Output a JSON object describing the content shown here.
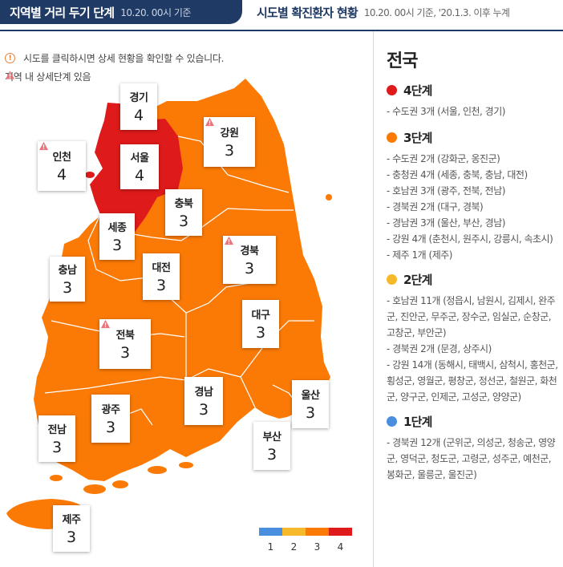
{
  "header": {
    "tab_active": {
      "title": "지역별 거리 두기 단계",
      "subtitle": "10.20. 00시 기준"
    },
    "tab_inactive": {
      "title": "시도별 확진환자 현황",
      "subtitle": "10.20. 00시 기준, '20.1.3. 이후 누계"
    }
  },
  "notices": {
    "info_icon": "info-circle-icon",
    "info_text": "시도를 클릭하시면 상세 현황을 확인할 수 있습니다.",
    "warn_icon": "warning-triangle-icon",
    "warn_text": "지역 내 상세단계 있음"
  },
  "colors": {
    "level1": "#4a8fdf",
    "level2": "#f7b92c",
    "level3": "#fb7a06",
    "level4": "#de1a1a",
    "warning": "#e9737b",
    "header_bg": "#1f3a64"
  },
  "regions": [
    {
      "name": "경기",
      "level": "4",
      "warning": false
    },
    {
      "name": "인천",
      "level": "4",
      "warning": true
    },
    {
      "name": "서울",
      "level": "4",
      "warning": false
    },
    {
      "name": "강원",
      "level": "3",
      "warning": true
    },
    {
      "name": "충북",
      "level": "3",
      "warning": false
    },
    {
      "name": "세종",
      "level": "3",
      "warning": false
    },
    {
      "name": "충남",
      "level": "3",
      "warning": false
    },
    {
      "name": "대전",
      "level": "3",
      "warning": false
    },
    {
      "name": "경북",
      "level": "3",
      "warning": true
    },
    {
      "name": "대구",
      "level": "3",
      "warning": false
    },
    {
      "name": "전북",
      "level": "3",
      "warning": true
    },
    {
      "name": "경남",
      "level": "3",
      "warning": false
    },
    {
      "name": "울산",
      "level": "3",
      "warning": false
    },
    {
      "name": "광주",
      "level": "3",
      "warning": false
    },
    {
      "name": "전남",
      "level": "3",
      "warning": false
    },
    {
      "name": "부산",
      "level": "3",
      "warning": false
    },
    {
      "name": "제주",
      "level": "3",
      "warning": false
    }
  ],
  "legend": [
    "1",
    "2",
    "3",
    "4"
  ],
  "panel": {
    "title": "전국",
    "levels": [
      {
        "label": "4단계",
        "items": [
          "- 수도권 3개 (서울, 인천, 경기)"
        ]
      },
      {
        "label": "3단계",
        "items": [
          "- 수도권 2개 (강화군, 옹진군)",
          "- 충청권 4개 (세종, 충북, 충남, 대전)",
          "- 호남권 3개 (광주, 전북, 전남)",
          "- 경북권 2개 (대구, 경북)",
          "- 경남권 3개 (울산, 부산, 경남)",
          "- 강원 4개 (춘천시, 원주시, 강릉시, 속초시)",
          "- 제주 1개 (제주)"
        ]
      },
      {
        "label": "2단계",
        "items": [
          "- 호남권 11개 (정읍시, 남원시, 김제시, 완주군, 진안군, 무주군, 장수군, 임실군, 순창군, 고창군, 부안군)",
          "- 경북권 2개 (문경, 상주시)",
          "- 강원 14개 (동해시, 태백시, 삼척시, 홍천군, 횡성군, 영월군, 평창군, 정선군, 철원군, 화천군, 양구군, 인제군, 고성군, 양양군)"
        ]
      },
      {
        "label": "1단계",
        "items": [
          "- 경북권 12개 (군위군, 의성군, 청송군, 영양군, 영덕군, 청도군, 고령군, 성주군, 예천군, 봉화군, 울릉군, 울진군)"
        ]
      }
    ]
  }
}
